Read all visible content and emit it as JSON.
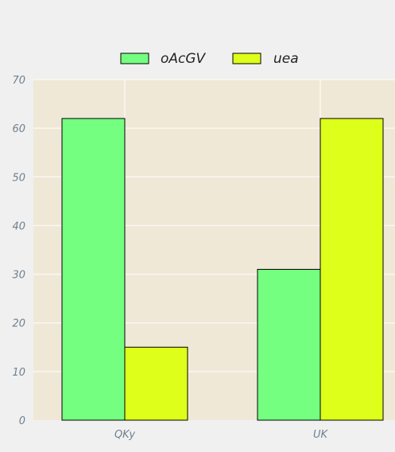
{
  "chart_data": {
    "type": "bar",
    "categories": [
      "QKy",
      "UK"
    ],
    "series": [
      {
        "name": "oAcGV",
        "values": [
          62,
          31
        ],
        "color": "#74ff80"
      },
      {
        "name": "uea",
        "values": [
          15,
          62
        ],
        "color": "#deff1a"
      }
    ],
    "ylim": [
      0,
      70
    ],
    "yticks": [
      0,
      10,
      20,
      30,
      40,
      50,
      60,
      70
    ],
    "grid": true,
    "legend_position": "top-center",
    "colors": {
      "page_background": "#f0f0f0",
      "plot_background": "#f0e8d7",
      "grid": "#fbf7ef",
      "tick_text": "#6f7f8f",
      "bar_edge": "#000000"
    }
  }
}
